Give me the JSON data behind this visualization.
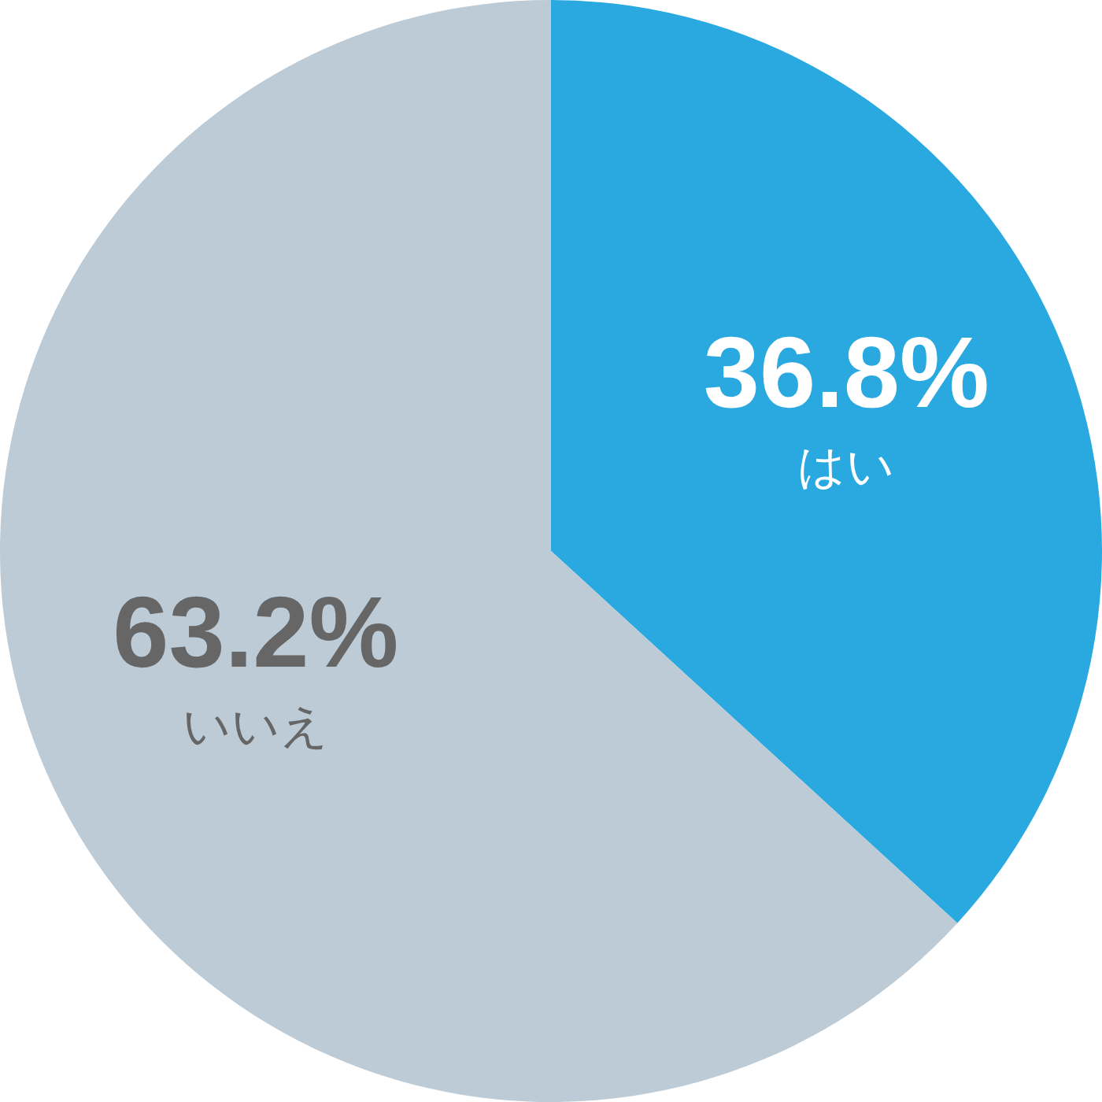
{
  "chart_data": {
    "type": "pie",
    "categories": [
      "はい",
      "いいえ"
    ],
    "values": [
      36.8,
      63.2
    ],
    "colors": [
      "#29a9e0",
      "#bccbd5"
    ],
    "value_labels": [
      "36.8%",
      "63.2%"
    ]
  }
}
